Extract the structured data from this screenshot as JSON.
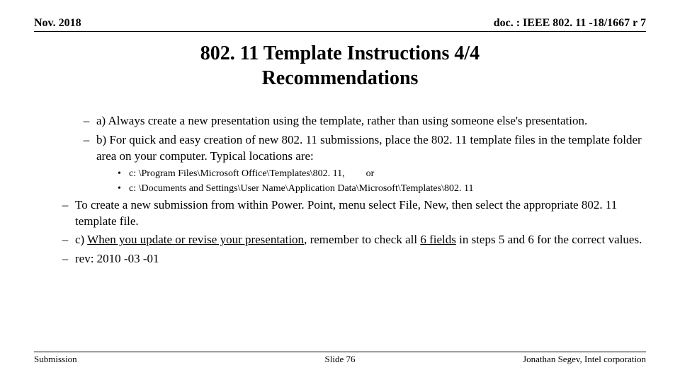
{
  "header": {
    "date": "Nov. 2018",
    "doc": "doc. : IEEE 802. 11 -18/1667 r 7"
  },
  "title": {
    "line1": "802. 11 Template Instructions 4/4",
    "line2": "Recommendations"
  },
  "items": {
    "a": "a) Always create a new presentation using the template, rather than using someone else's presentation.",
    "b": "b) For quick and easy creation of new 802. 11 submissions, place the 802. 11 template files in the template folder area on your computer.  Typical locations are:",
    "b_sub1_path": "c: \\Program Files\\Microsoft Office\\Templates\\802. 11,",
    "b_sub1_suffix": "or",
    "b_sub2": "c: \\Documents and Settings\\User Name\\Application Data\\Microsoft\\Templates\\802. 11",
    "ppt": "To create a new submission from within Power. Point, menu select File, New, then select the appropriate 802. 11 template file.",
    "c_prefix": "c) ",
    "c_under1": "When you update or revise your presentation",
    "c_mid": ", remember to check all ",
    "c_under2": "6 fields",
    "c_suffix": " in steps 5 and 6 for the correct values.",
    "rev": "rev: 2010 -03 -01"
  },
  "footer": {
    "left": "Submission",
    "center": "Slide 76",
    "right": "Jonathan Segev, Intel corporation"
  }
}
